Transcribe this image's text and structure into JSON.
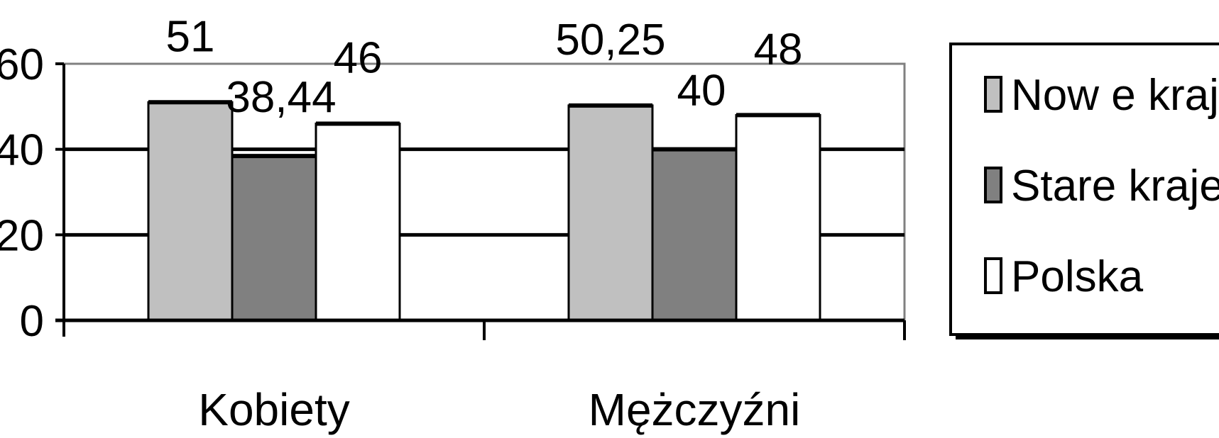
{
  "chart_data": {
    "type": "bar",
    "categories": [
      "Kobiety",
      "Mężczyźni"
    ],
    "series": [
      {
        "name": "Now e kraje UE",
        "values": [
          51,
          50.25
        ],
        "labels": [
          "51",
          "50,25"
        ],
        "color": "#c0c0c0"
      },
      {
        "name": "Stare kraje UE",
        "values": [
          38.44,
          40
        ],
        "labels": [
          "38,44",
          "40"
        ],
        "color": "#808080"
      },
      {
        "name": "Polska",
        "values": [
          46,
          48
        ],
        "labels": [
          "46",
          "48"
        ],
        "color": "#ffffff"
      }
    ],
    "yticks": [
      "0",
      "20",
      "40",
      "60"
    ],
    "ylim": [
      0,
      60
    ],
    "grid": true,
    "legend": "right"
  }
}
